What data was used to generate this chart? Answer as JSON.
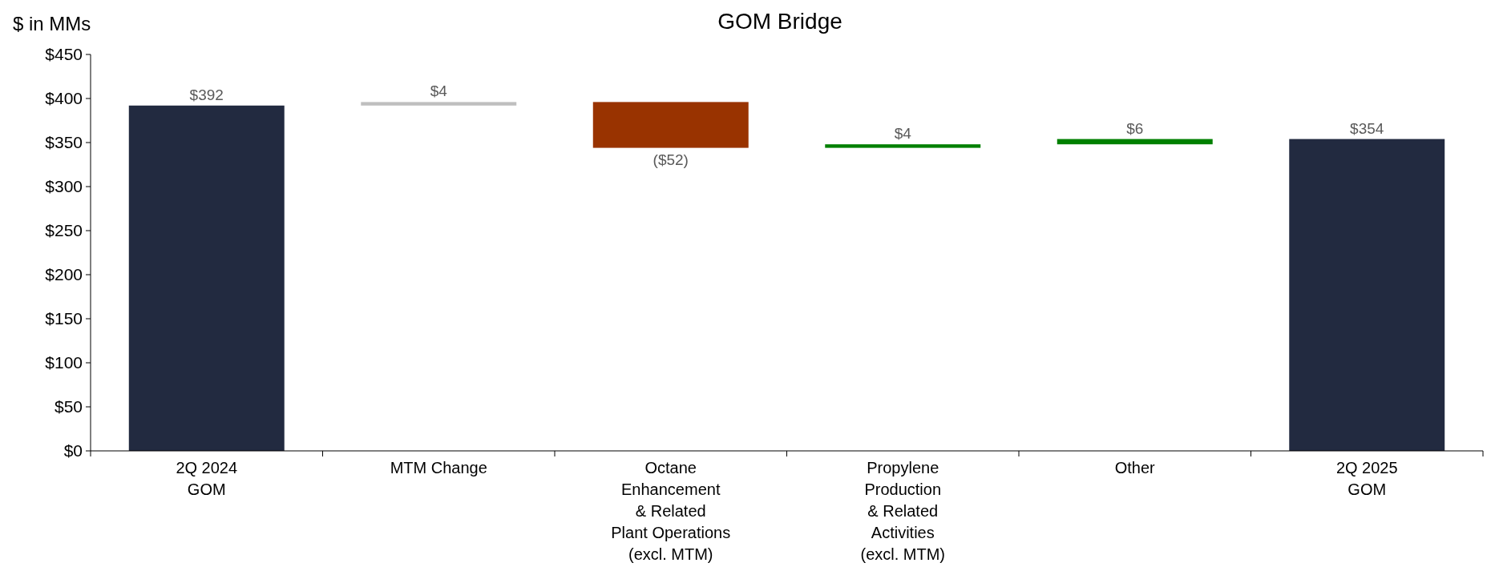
{
  "chart_data": {
    "type": "bar",
    "title": "GOM Bridge",
    "ylabel": "$ in MMs",
    "categories": [
      "2Q 2024\nGOM",
      "MTM Change",
      "Octane\nEnhancement\n& Related\nPlant Operations\n(excl. MTM)",
      "Propylene\nProduction\n& Related\nActivities\n(excl. MTM)",
      "Other",
      "2Q 2025\nGOM"
    ],
    "values": [
      392,
      4,
      -52,
      4,
      6,
      354
    ],
    "base": [
      0,
      392,
      396,
      344,
      348,
      0
    ],
    "colors": [
      "#222a40",
      "#bfbfbf",
      "#993300",
      "#008000",
      "#008000",
      "#222a40"
    ],
    "value_labels": [
      "$392",
      "$4",
      "($52)",
      "$4",
      "$6",
      "$354"
    ],
    "ylim": [
      0,
      450
    ],
    "yticks": [
      {
        "value": 0,
        "label": "$0"
      },
      {
        "value": 50,
        "label": "$50"
      },
      {
        "value": 100,
        "label": "$100"
      },
      {
        "value": 150,
        "label": "$150"
      },
      {
        "value": 200,
        "label": "$200"
      },
      {
        "value": 250,
        "label": "$250"
      },
      {
        "value": 300,
        "label": "$300"
      },
      {
        "value": 350,
        "label": "$350"
      },
      {
        "value": 400,
        "label": "$400"
      },
      {
        "value": 450,
        "label": "$450"
      }
    ],
    "grid": false
  }
}
